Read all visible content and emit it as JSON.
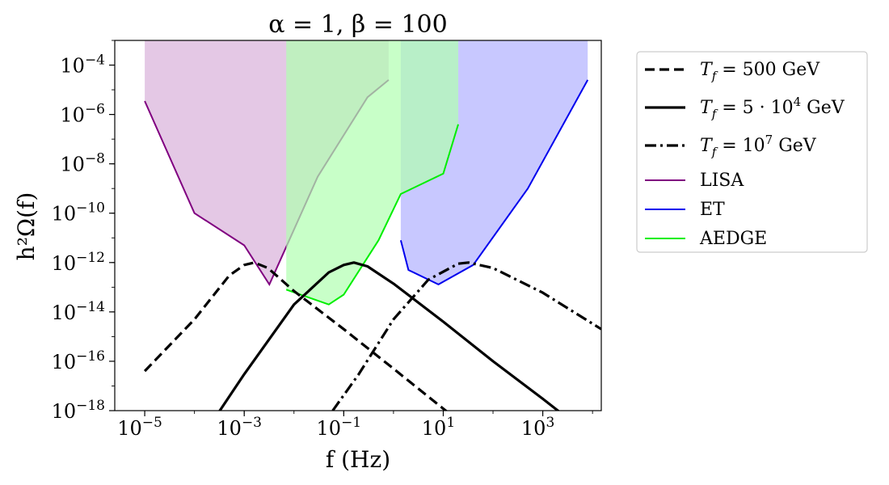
{
  "chart_data": {
    "type": "line",
    "title": "α = 1, β = 100",
    "xlabel": "f (Hz)",
    "ylabel": "h²Ω(f)",
    "xscale": "log",
    "yscale": "log",
    "xlim": [
      2.5e-06,
      15000
    ],
    "ylim": [
      1e-18,
      0.001
    ],
    "x_ticks": [
      {
        "value": 1e-05,
        "base": "10",
        "exp": "−5"
      },
      {
        "value": 0.001,
        "base": "10",
        "exp": "−3"
      },
      {
        "value": 0.1,
        "base": "10",
        "exp": "−1"
      },
      {
        "value": 10,
        "base": "10",
        "exp": "1"
      },
      {
        "value": 1000,
        "base": "10",
        "exp": "3"
      }
    ],
    "y_ticks": [
      {
        "value": 1e-18,
        "base": "10",
        "exp": "−18"
      },
      {
        "value": 1e-16,
        "base": "10",
        "exp": "−16"
      },
      {
        "value": 1e-14,
        "base": "10",
        "exp": "−14"
      },
      {
        "value": 1e-12,
        "base": "10",
        "exp": "−12"
      },
      {
        "value": 1e-10,
        "base": "10",
        "exp": "−10"
      },
      {
        "value": 1e-08,
        "base": "10",
        "exp": "−8"
      },
      {
        "value": 1e-06,
        "base": "10",
        "exp": "−6"
      },
      {
        "value": 0.0001,
        "base": "10",
        "exp": "−4"
      }
    ],
    "grid": false,
    "legend_position": "outside-right",
    "sensitivity_regions": [
      {
        "name": "LISA",
        "color": "#800080",
        "fill": "#d8b0da",
        "x": [
          1e-05,
          0.0001,
          0.001,
          0.0032,
          0.03,
          0.3,
          0.8
        ],
        "y": [
          3.5e-06,
          1e-10,
          5e-12,
          1.3e-13,
          3e-09,
          5e-06,
          2.5e-05
        ]
      },
      {
        "name": "ET",
        "color": "#0000ee",
        "fill": "#b0b0ff",
        "x": [
          1.4,
          2.0,
          8.0,
          40,
          500,
          8000
        ],
        "y": [
          8e-12,
          5e-13,
          1.3e-13,
          8e-13,
          1e-09,
          2.5e-05
        ]
      },
      {
        "name": "AEDGE",
        "color": "#00ee00",
        "fill": "#b0ffb0",
        "x": [
          0.007,
          0.05,
          0.1,
          0.5,
          1.4,
          10,
          20
        ],
        "y": [
          8e-14,
          2e-14,
          5e-14,
          8e-12,
          6e-10,
          4e-09,
          4e-07
        ]
      }
    ],
    "series": [
      {
        "name": "T_f = 500 GeV",
        "name_parts": {
          "prefix": "T",
          "sub": "f",
          "mid": " = 500 GeV",
          "sup": "",
          "suffix": ""
        },
        "style": "dashed",
        "x": [
          1e-05,
          0.0001,
          0.0005,
          0.001,
          0.0016,
          0.003,
          0.01,
          0.1,
          1,
          10,
          100
        ],
        "y": [
          4e-17,
          5e-15,
          3e-13,
          8e-13,
          1e-12,
          6e-13,
          7e-14,
          2e-15,
          5e-17,
          1.2e-18,
          3e-20
        ]
      },
      {
        "name": "T_f = 5·10⁴ GeV",
        "name_parts": {
          "prefix": "T",
          "sub": "f",
          "mid": " = 5 · 10",
          "sup": "4",
          "suffix": " GeV"
        },
        "style": "solid",
        "x": [
          0.0003,
          0.001,
          0.01,
          0.05,
          0.1,
          0.16,
          0.3,
          1,
          10,
          100,
          1000,
          10000
        ],
        "y": [
          8e-19,
          3e-17,
          2e-14,
          4e-13,
          8e-13,
          1e-12,
          7e-13,
          1.4e-13,
          4e-15,
          1e-16,
          3e-18,
          8e-20
        ]
      },
      {
        "name": "T_f = 10⁷ GeV",
        "name_parts": {
          "prefix": "T",
          "sub": "f",
          "mid": " = 10",
          "sup": "7",
          "suffix": " GeV"
        },
        "style": "dashdot",
        "x": [
          0.06,
          0.2,
          1,
          5,
          20,
          32,
          100,
          1000,
          15000
        ],
        "y": [
          1e-18,
          3e-17,
          5e-15,
          2e-13,
          9e-13,
          1e-12,
          6e-13,
          6e-14,
          2e-15
        ]
      }
    ],
    "legend": [
      {
        "series_index": 0,
        "label": "T_f = 500 GeV"
      },
      {
        "series_index": 1,
        "label": "T_f = 5·10⁴ GeV"
      },
      {
        "series_index": 2,
        "label": "T_f = 10⁷ GeV"
      },
      {
        "region_index": 0,
        "label": "LISA"
      },
      {
        "region_index": 1,
        "label": "ET"
      },
      {
        "region_index": 2,
        "label": "AEDGE"
      }
    ]
  }
}
